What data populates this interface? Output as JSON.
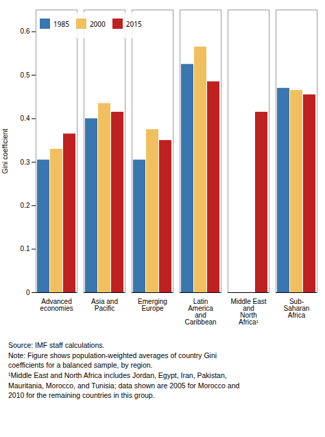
{
  "chart_data": {
    "type": "bar",
    "categories": [
      "Advanced\neconomies",
      "Asia and\nPacific",
      "Emerging\nEurope",
      "Latin\nAmerica\nand\nCaribbean",
      "Middle East\nand\nNorth\nAfrica¹",
      "Sub-\nSaharan\nAfrica"
    ],
    "series": [
      {
        "name": "1985",
        "color": "#3a76b0",
        "values": [
          0.305,
          0.4,
          0.305,
          0.525,
          null,
          0.47
        ]
      },
      {
        "name": "2000",
        "color": "#f0c060",
        "values": [
          0.33,
          0.435,
          0.375,
          0.565,
          null,
          0.465
        ]
      },
      {
        "name": "2015",
        "color": "#bf2020",
        "values": [
          0.365,
          0.415,
          0.35,
          0.485,
          0.415,
          0.455
        ]
      }
    ],
    "ylabel": "Gini coefficient",
    "ylim": [
      0,
      0.65
    ],
    "yticks": [
      0,
      0.1,
      0.2,
      0.3,
      0.4,
      0.5,
      0.6
    ],
    "legend": "upper left",
    "caption": "Source: IMF staff calculations.\nNote: Figure shows population-weighted averages of country Gini\ncoefficients for a balanced sample, by region.\n¹Middle East and North Africa includes Jordan, Egypt, Iran, Pakistan,\nMauritania, Morocco, and Tunisia; data shown are 2005 for Morocco and\n2010 for the remaining countries in this group."
  }
}
